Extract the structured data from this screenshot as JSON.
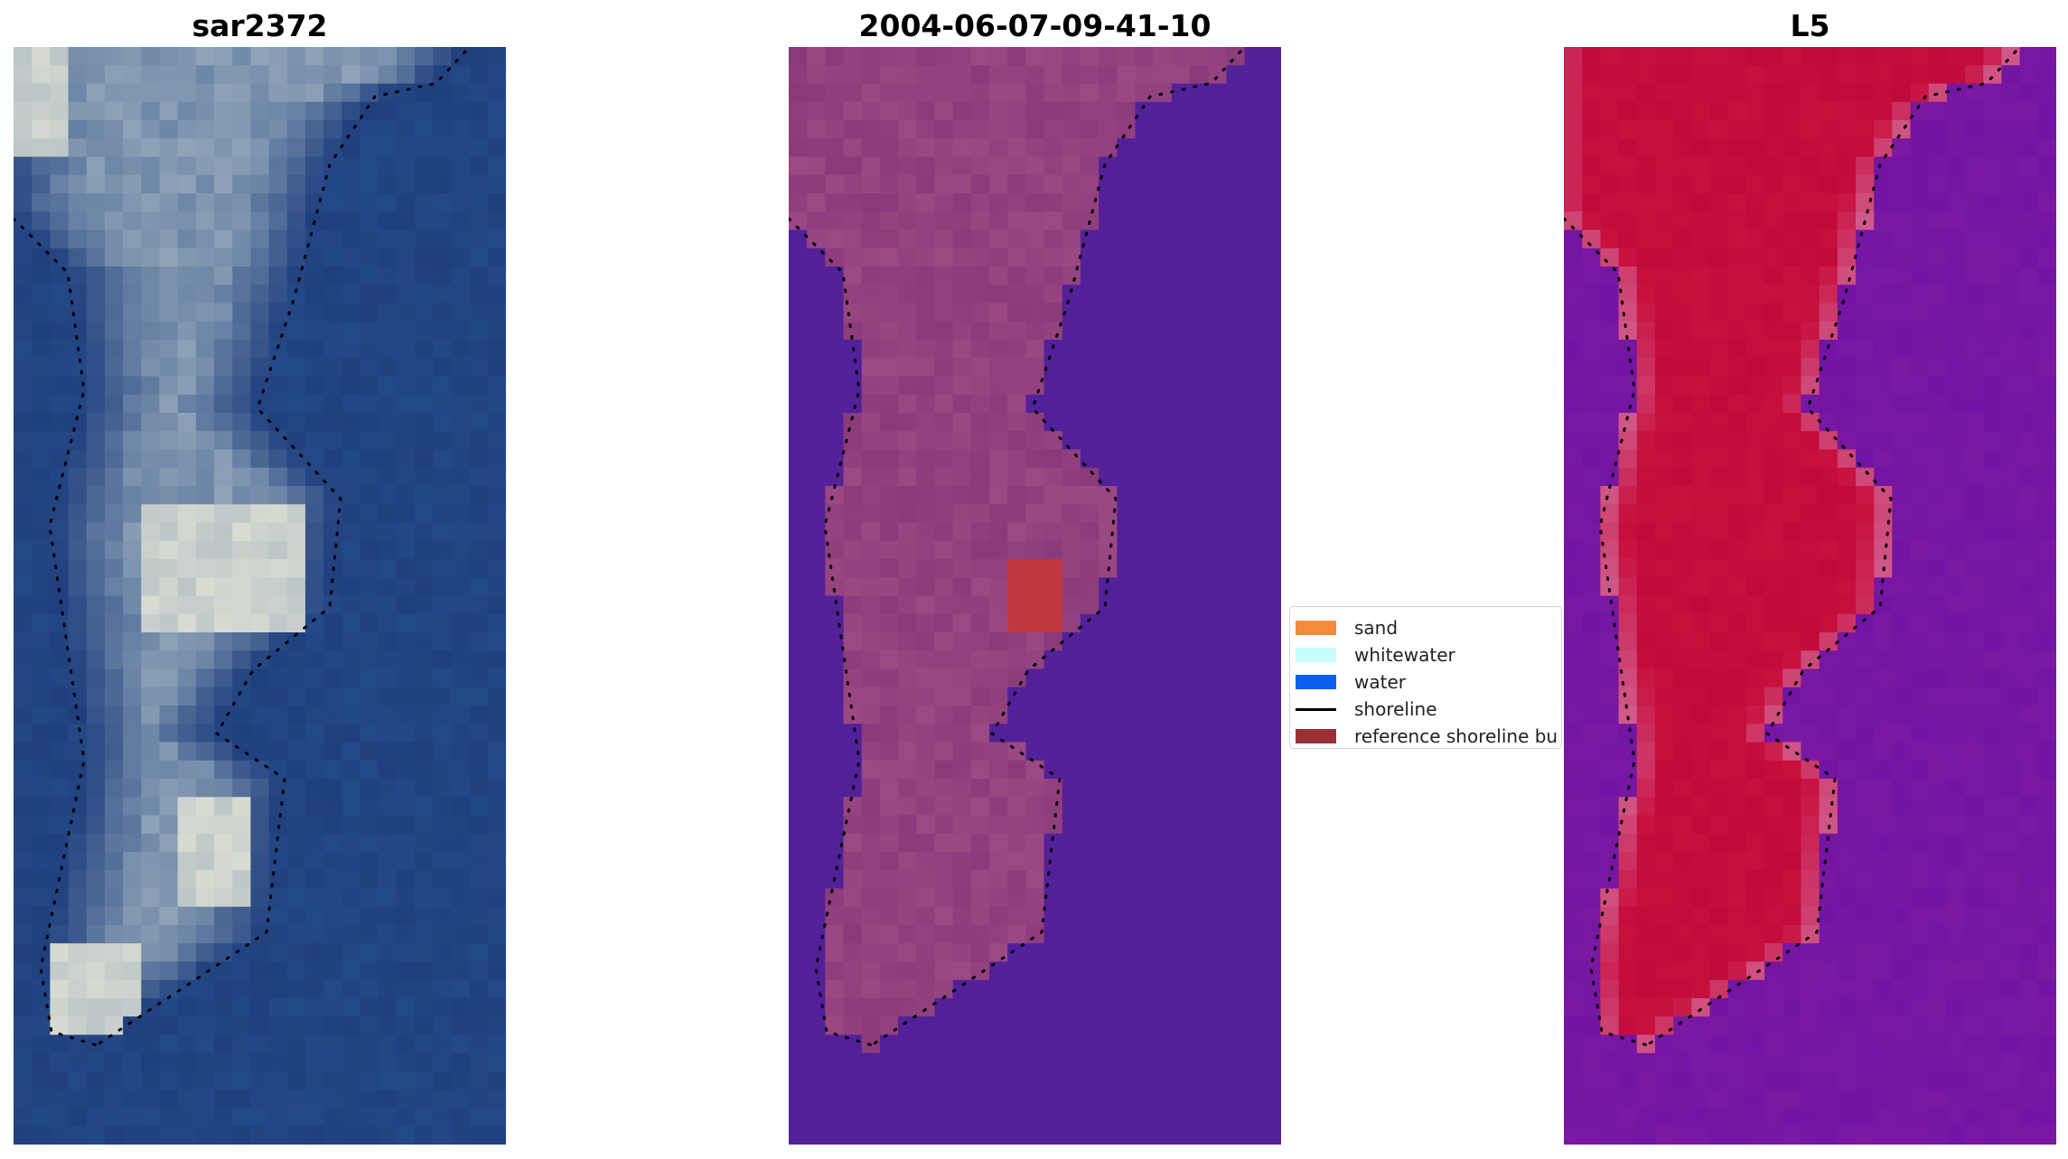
{
  "panels": [
    {
      "title": "sar2372",
      "style": "rgb"
    },
    {
      "title": "2004-06-07-09-41-10",
      "style": "class"
    },
    {
      "title": "L5",
      "style": "index"
    }
  ],
  "legend": {
    "items": [
      {
        "label": "sand",
        "color": "#f58a3c",
        "kind": "patch"
      },
      {
        "label": "whitewater",
        "color": "#c8fbfb",
        "kind": "patch"
      },
      {
        "label": "water",
        "color": "#0a5ef0",
        "kind": "patch"
      },
      {
        "label": "shoreline",
        "color": "#000000",
        "kind": "line"
      },
      {
        "label": "reference shoreline bu",
        "color": "#9b2f36",
        "kind": "patch"
      }
    ]
  },
  "colors": {
    "rgb_water": "#1f3f7e",
    "rgb_land": "#8fa4b8",
    "rgb_bright": "#d9dcd2",
    "class_water": "#52219a",
    "class_land": "#8a3a7a",
    "class_land_light": "#a85289",
    "class_red": "#c0383f",
    "index_water": "#7a18a2",
    "index_land": "#c8103e",
    "index_edge": "#d05a8a",
    "shoreline_dots": "#000000"
  }
}
